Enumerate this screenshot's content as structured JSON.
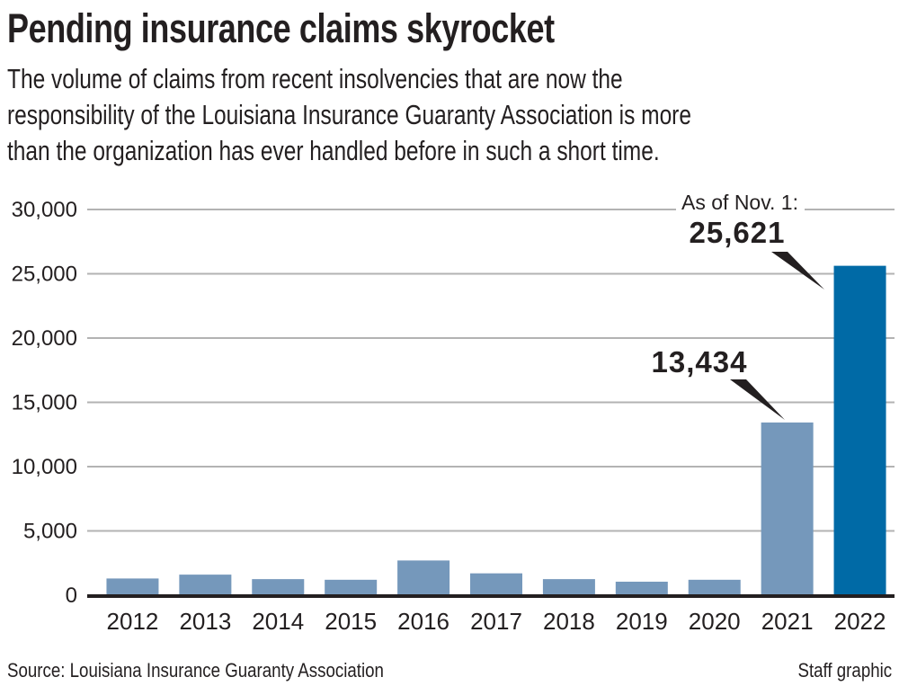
{
  "header": {
    "title": "Pending insurance claims skyrocket",
    "subtitle_lines": [
      "The volume of claims from recent insolvencies that are now the",
      "responsibility of the Louisiana Insurance Guaranty Association is more",
      "than the organization has ever handled before in such a short time."
    ]
  },
  "footer": {
    "source": "Source: Louisiana Insurance Guaranty Association",
    "credit": "Staff graphic"
  },
  "colors": {
    "bar": "#7598bb",
    "highlight_bar": "#006aa6",
    "grid": "#b3b3b3",
    "axis": "#231f20"
  },
  "chart_data": {
    "type": "bar",
    "title": "Pending insurance claims skyrocket",
    "xlabel": "",
    "ylabel": "",
    "categories": [
      "2012",
      "2013",
      "2014",
      "2015",
      "2016",
      "2017",
      "2018",
      "2019",
      "2020",
      "2021",
      "2022"
    ],
    "values": [
      1300,
      1600,
      1250,
      1200,
      2700,
      1700,
      1250,
      1050,
      1200,
      13434,
      25621
    ],
    "highlight_index": 10,
    "ylim": [
      0,
      30000
    ],
    "yticks": [
      0,
      5000,
      10000,
      15000,
      20000,
      25000,
      30000
    ],
    "ytick_labels": [
      "0",
      "5,000",
      "10,000",
      "15,000",
      "20,000",
      "25,000",
      "30,000"
    ],
    "grid": true,
    "annotations": [
      {
        "category": "2021",
        "label": "13,434"
      },
      {
        "category": "2022",
        "label": "25,621",
        "note": "As of Nov. 1:"
      }
    ]
  }
}
